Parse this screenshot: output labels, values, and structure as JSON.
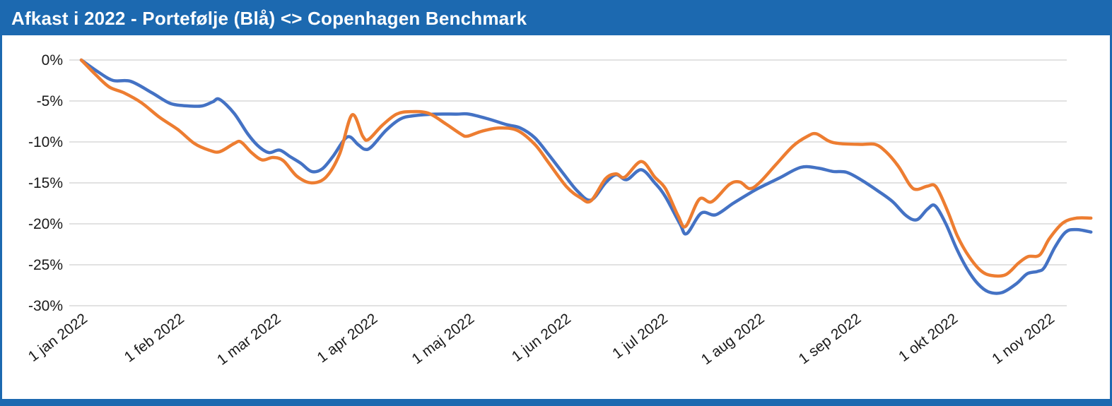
{
  "window": {
    "title": "Afkast i 2022 - Portefølje (Blå) <> Copenhagen Benchmark"
  },
  "colors": {
    "header_bg": "#1c69b0",
    "border": "#1c69b0",
    "title_text": "#ffffff",
    "gridline": "#d9d9d9",
    "axis_text": "#1a1a1a",
    "portfolio_line": "#4472c4",
    "benchmark_line": "#ed7d31"
  },
  "chart_data": {
    "type": "line",
    "title": "Afkast i 2022 - Portefølje (Blå) <> Copenhagen Benchmark",
    "xlabel": "",
    "ylabel": "",
    "ylim": [
      -30,
      0
    ],
    "x_unit": "months since 1 jan 2022 (0 = 1 jan, 10 = 1 nov)",
    "grid": "horizontal",
    "legend_position": "none (series identified in title: Portefølje = blue, Copenhagen Benchmark = orange)",
    "y_tick_labels": [
      "0%",
      "-5%",
      "-10%",
      "-15%",
      "-20%",
      "-25%",
      "-30%"
    ],
    "y_tick_values": [
      0,
      -5,
      -10,
      -15,
      -20,
      -25,
      -30
    ],
    "x_tick_labels": [
      "1 jan 2022",
      "1 feb 2022",
      "1 mar 2022",
      "1 apr 2022",
      "1 maj 2022",
      "1 jun 2022",
      "1 jul 2022",
      "1 aug 2022",
      "1 sep 2022",
      "1 okt 2022",
      "1 nov 2022"
    ],
    "x_tick_values": [
      0,
      1,
      2,
      3,
      4,
      5,
      6,
      7,
      8,
      9,
      10
    ],
    "series": [
      {
        "name": "Portefølje",
        "color": "#4472c4",
        "points": [
          [
            0,
            0
          ],
          [
            0.18,
            -1.5
          ],
          [
            0.33,
            -2.5
          ],
          [
            0.51,
            -2.6
          ],
          [
            0.73,
            -4.0
          ],
          [
            0.92,
            -5.3
          ],
          [
            1.1,
            -5.6
          ],
          [
            1.25,
            -5.6
          ],
          [
            1.36,
            -5.1
          ],
          [
            1.43,
            -4.8
          ],
          [
            1.58,
            -6.5
          ],
          [
            1.72,
            -9.0
          ],
          [
            1.83,
            -10.5
          ],
          [
            1.94,
            -11.3
          ],
          [
            2.05,
            -11.0
          ],
          [
            2.16,
            -11.8
          ],
          [
            2.27,
            -12.6
          ],
          [
            2.38,
            -13.6
          ],
          [
            2.49,
            -13.3
          ],
          [
            2.6,
            -11.8
          ],
          [
            2.75,
            -9.4
          ],
          [
            2.86,
            -10.3
          ],
          [
            2.93,
            -10.9
          ],
          [
            3.0,
            -10.6
          ],
          [
            3.15,
            -8.6
          ],
          [
            3.3,
            -7.2
          ],
          [
            3.44,
            -6.8
          ],
          [
            3.66,
            -6.6
          ],
          [
            3.88,
            -6.6
          ],
          [
            4.01,
            -6.6
          ],
          [
            4.21,
            -7.2
          ],
          [
            4.4,
            -7.9
          ],
          [
            4.54,
            -8.3
          ],
          [
            4.69,
            -9.5
          ],
          [
            4.83,
            -11.5
          ],
          [
            4.98,
            -13.8
          ],
          [
            5.13,
            -16.0
          ],
          [
            5.27,
            -17.1
          ],
          [
            5.42,
            -15.0
          ],
          [
            5.53,
            -14.0
          ],
          [
            5.64,
            -14.6
          ],
          [
            5.79,
            -13.4
          ],
          [
            5.93,
            -15.0
          ],
          [
            6.04,
            -16.7
          ],
          [
            6.19,
            -20.0
          ],
          [
            6.26,
            -21.2
          ],
          [
            6.41,
            -18.7
          ],
          [
            6.56,
            -18.9
          ],
          [
            6.74,
            -17.5
          ],
          [
            6.92,
            -16.2
          ],
          [
            7.01,
            -15.6
          ],
          [
            7.22,
            -14.4
          ],
          [
            7.44,
            -13.1
          ],
          [
            7.62,
            -13.2
          ],
          [
            7.77,
            -13.6
          ],
          [
            7.91,
            -13.7
          ],
          [
            8.06,
            -14.6
          ],
          [
            8.24,
            -16.0
          ],
          [
            8.39,
            -17.3
          ],
          [
            8.53,
            -19.0
          ],
          [
            8.64,
            -19.5
          ],
          [
            8.75,
            -18.2
          ],
          [
            8.83,
            -17.8
          ],
          [
            8.94,
            -20.0
          ],
          [
            9.05,
            -23.0
          ],
          [
            9.16,
            -25.5
          ],
          [
            9.27,
            -27.3
          ],
          [
            9.38,
            -28.3
          ],
          [
            9.52,
            -28.4
          ],
          [
            9.67,
            -27.3
          ],
          [
            9.78,
            -26.1
          ],
          [
            9.89,
            -25.8
          ],
          [
            9.96,
            -25.3
          ],
          [
            10.07,
            -22.8
          ],
          [
            10.18,
            -21.0
          ],
          [
            10.29,
            -20.7
          ],
          [
            10.44,
            -21.0
          ]
        ]
      },
      {
        "name": "Copenhagen Benchmark",
        "color": "#ed7d31",
        "points": [
          [
            0,
            0
          ],
          [
            0.15,
            -1.8
          ],
          [
            0.29,
            -3.3
          ],
          [
            0.44,
            -4.0
          ],
          [
            0.62,
            -5.2
          ],
          [
            0.81,
            -7.0
          ],
          [
            1.0,
            -8.5
          ],
          [
            1.17,
            -10.2
          ],
          [
            1.32,
            -11.0
          ],
          [
            1.43,
            -11.2
          ],
          [
            1.58,
            -10.2
          ],
          [
            1.65,
            -10.0
          ],
          [
            1.76,
            -11.3
          ],
          [
            1.87,
            -12.2
          ],
          [
            1.98,
            -11.9
          ],
          [
            2.09,
            -12.3
          ],
          [
            2.23,
            -14.2
          ],
          [
            2.38,
            -15.0
          ],
          [
            2.53,
            -14.3
          ],
          [
            2.67,
            -11.5
          ],
          [
            2.8,
            -6.7
          ],
          [
            2.91,
            -9.3
          ],
          [
            2.97,
            -9.7
          ],
          [
            3.11,
            -8.0
          ],
          [
            3.26,
            -6.6
          ],
          [
            3.41,
            -6.3
          ],
          [
            3.59,
            -6.5
          ],
          [
            3.77,
            -7.8
          ],
          [
            3.92,
            -9.0
          ],
          [
            3.99,
            -9.3
          ],
          [
            4.14,
            -8.7
          ],
          [
            4.32,
            -8.3
          ],
          [
            4.51,
            -8.6
          ],
          [
            4.69,
            -10.3
          ],
          [
            4.83,
            -12.5
          ],
          [
            5.02,
            -15.5
          ],
          [
            5.16,
            -16.8
          ],
          [
            5.27,
            -17.2
          ],
          [
            5.42,
            -14.5
          ],
          [
            5.53,
            -13.9
          ],
          [
            5.62,
            -14.3
          ],
          [
            5.79,
            -12.4
          ],
          [
            5.93,
            -14.3
          ],
          [
            6.04,
            -15.7
          ],
          [
            6.17,
            -19.0
          ],
          [
            6.25,
            -20.3
          ],
          [
            6.39,
            -17.0
          ],
          [
            6.52,
            -17.3
          ],
          [
            6.7,
            -15.2
          ],
          [
            6.81,
            -14.9
          ],
          [
            6.91,
            -15.7
          ],
          [
            7.01,
            -15.0
          ],
          [
            7.18,
            -12.8
          ],
          [
            7.36,
            -10.5
          ],
          [
            7.51,
            -9.3
          ],
          [
            7.6,
            -9.0
          ],
          [
            7.73,
            -9.9
          ],
          [
            7.84,
            -10.2
          ],
          [
            8.06,
            -10.3
          ],
          [
            8.21,
            -10.3
          ],
          [
            8.32,
            -11.2
          ],
          [
            8.45,
            -13.0
          ],
          [
            8.57,
            -15.3
          ],
          [
            8.64,
            -15.8
          ],
          [
            8.75,
            -15.4
          ],
          [
            8.84,
            -15.5
          ],
          [
            8.96,
            -18.5
          ],
          [
            9.06,
            -21.5
          ],
          [
            9.18,
            -24.0
          ],
          [
            9.3,
            -25.7
          ],
          [
            9.41,
            -26.3
          ],
          [
            9.56,
            -26.2
          ],
          [
            9.69,
            -24.8
          ],
          [
            9.79,
            -24.0
          ],
          [
            9.91,
            -23.8
          ],
          [
            10.01,
            -21.8
          ],
          [
            10.15,
            -19.9
          ],
          [
            10.29,
            -19.3
          ],
          [
            10.44,
            -19.3
          ]
        ]
      }
    ]
  }
}
